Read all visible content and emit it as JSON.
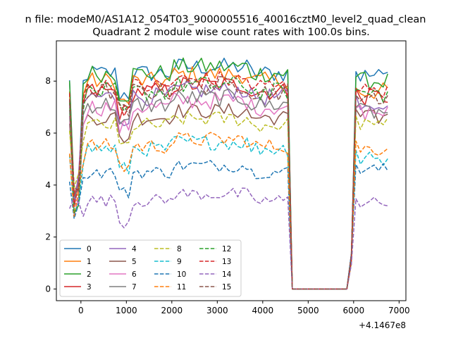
{
  "chart_data": {
    "type": "line",
    "suptitle": "n file: modeM0/AS1A12_054T03_9000005516_40016cztM0_level2_quad_clean",
    "title": "Quadrant 2 module wise count rates with 100.0s bins.",
    "xlabel": "",
    "ylabel": "",
    "offset_label": "+4.1467e8",
    "xlim": [
      -540,
      7150
    ],
    "ylim": [
      -0.45,
      9.55
    ],
    "x_ticks": [
      0,
      1000,
      2000,
      3000,
      4000,
      5000,
      6000,
      7000
    ],
    "x_tick_labels": [
      "0",
      "1000",
      "2000",
      "3000",
      "4000",
      "5000",
      "6000",
      "7000"
    ],
    "y_ticks": [
      0,
      2,
      4,
      6,
      8
    ],
    "y_tick_labels": [
      "0",
      "2",
      "4",
      "6",
      "8"
    ],
    "grid": false,
    "legend_position": "lower-left",
    "x_start": -250,
    "x_step": 100,
    "gap": {
      "from": 4650,
      "to": 5850,
      "value": 0
    },
    "series": [
      {
        "name": "0",
        "color": "#1f77b4",
        "dash": "solid",
        "base": 8.3,
        "after": 8.2,
        "noise": 0.35
      },
      {
        "name": "1",
        "color": "#ff7f0e",
        "dash": "solid",
        "base": 8.0,
        "after": 7.6,
        "noise": 0.35
      },
      {
        "name": "2",
        "color": "#2ca02c",
        "dash": "solid",
        "base": 8.3,
        "after": 8.0,
        "noise": 0.35
      },
      {
        "name": "3",
        "color": "#d62728",
        "dash": "solid",
        "base": 7.6,
        "after": 7.4,
        "noise": 0.35
      },
      {
        "name": "4",
        "color": "#9467bd",
        "dash": "solid",
        "base": 7.4,
        "after": 7.2,
        "noise": 0.35
      },
      {
        "name": "5",
        "color": "#8c564b",
        "dash": "solid",
        "base": 6.6,
        "after": 6.6,
        "noise": 0.3
      },
      {
        "name": "6",
        "color": "#e377c2",
        "dash": "solid",
        "base": 7.0,
        "after": 6.8,
        "noise": 0.35
      },
      {
        "name": "7",
        "color": "#7f7f7f",
        "dash": "solid",
        "base": 7.1,
        "after": 6.8,
        "noise": 0.35
      },
      {
        "name": "8",
        "color": "#bcbd22",
        "dash": "dashed",
        "base": 6.3,
        "after": 6.3,
        "noise": 0.3
      },
      {
        "name": "9",
        "color": "#17becf",
        "dash": "dashed",
        "base": 5.4,
        "after": 5.0,
        "noise": 0.3
      },
      {
        "name": "10",
        "color": "#1f77b4",
        "dash": "dashed",
        "base": 4.5,
        "after": 4.6,
        "noise": 0.25
      },
      {
        "name": "11",
        "color": "#ff7f0e",
        "dash": "dashed",
        "base": 5.5,
        "after": 5.4,
        "noise": 0.3
      },
      {
        "name": "12",
        "color": "#2ca02c",
        "dash": "dashed",
        "base": 7.6,
        "after": 7.5,
        "noise": 0.35
      },
      {
        "name": "13",
        "color": "#d62728",
        "dash": "dashed",
        "base": 7.8,
        "after": 7.6,
        "noise": 0.35
      },
      {
        "name": "14",
        "color": "#9467bd",
        "dash": "dashed",
        "base": 3.4,
        "after": 3.3,
        "noise": 0.25
      },
      {
        "name": "15",
        "color": "#8c564b",
        "dash": "dashed",
        "base": 7.6,
        "after": 7.4,
        "noise": 0.35
      }
    ]
  }
}
